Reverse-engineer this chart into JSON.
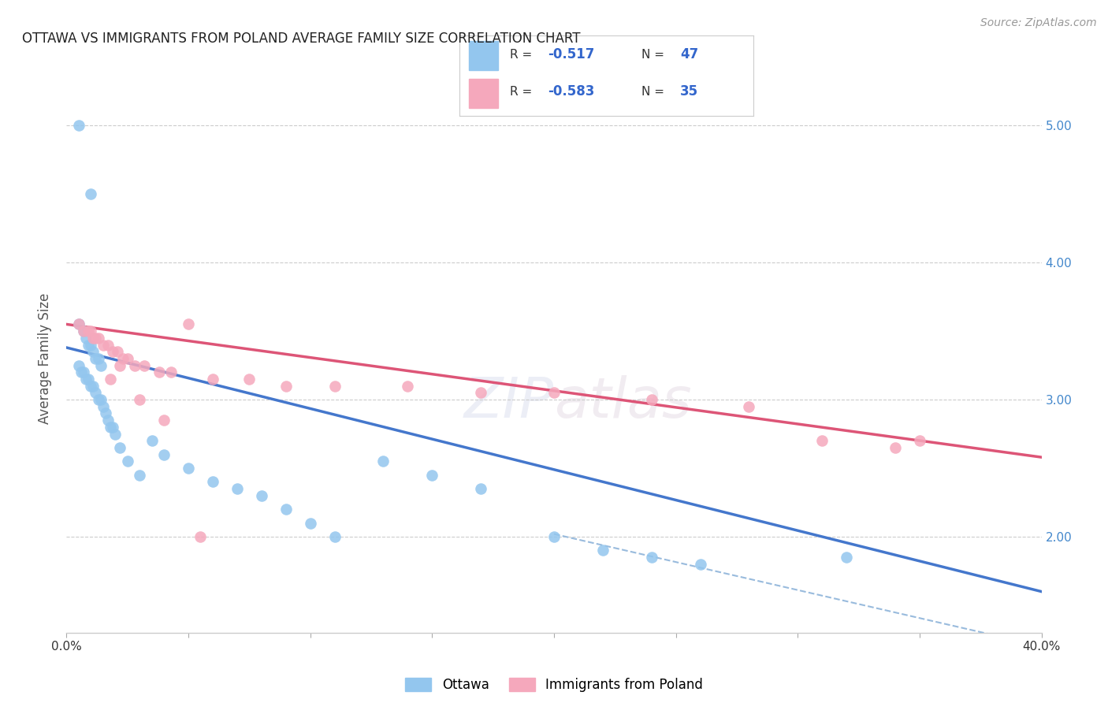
{
  "title": "OTTAWA VS IMMIGRANTS FROM POLAND AVERAGE FAMILY SIZE CORRELATION CHART",
  "source": "Source: ZipAtlas.com",
  "ylabel": "Average Family Size",
  "xlim": [
    0.0,
    0.4
  ],
  "ylim": [
    1.3,
    5.3
  ],
  "right_yticks": [
    5.0,
    4.0,
    3.0,
    2.0
  ],
  "grid_yticks": [
    2.0,
    3.0,
    4.0,
    5.0
  ],
  "background_color": "#ffffff",
  "grid_color": "#cccccc",
  "watermark": "ZIPatlas",
  "ottawa_color": "#93C6EE",
  "poland_color": "#F5A8BC",
  "ottawa_line_color": "#4477CC",
  "poland_line_color": "#DD5577",
  "dashed_line_color": "#99BBDD",
  "r_color": "#3366CC",
  "n_color": "#3366CC",
  "ottawa_scatter_x": [
    0.005,
    0.01,
    0.005,
    0.007,
    0.008,
    0.009,
    0.01,
    0.011,
    0.012,
    0.013,
    0.014,
    0.005,
    0.006,
    0.007,
    0.008,
    0.009,
    0.01,
    0.011,
    0.012,
    0.013,
    0.014,
    0.015,
    0.016,
    0.017,
    0.018,
    0.019,
    0.02,
    0.022,
    0.025,
    0.03,
    0.035,
    0.04,
    0.05,
    0.06,
    0.07,
    0.08,
    0.09,
    0.1,
    0.11,
    0.13,
    0.15,
    0.17,
    0.2,
    0.22,
    0.24,
    0.26,
    0.32
  ],
  "ottawa_scatter_y": [
    5.0,
    4.5,
    3.55,
    3.5,
    3.45,
    3.4,
    3.4,
    3.35,
    3.3,
    3.3,
    3.25,
    3.25,
    3.2,
    3.2,
    3.15,
    3.15,
    3.1,
    3.1,
    3.05,
    3.0,
    3.0,
    2.95,
    2.9,
    2.85,
    2.8,
    2.8,
    2.75,
    2.65,
    2.55,
    2.45,
    2.7,
    2.6,
    2.5,
    2.4,
    2.35,
    2.3,
    2.2,
    2.1,
    2.0,
    2.55,
    2.45,
    2.35,
    2.0,
    1.9,
    1.85,
    1.8,
    1.85
  ],
  "poland_scatter_x": [
    0.005,
    0.007,
    0.009,
    0.01,
    0.011,
    0.013,
    0.015,
    0.017,
    0.019,
    0.021,
    0.023,
    0.025,
    0.028,
    0.032,
    0.038,
    0.043,
    0.05,
    0.06,
    0.075,
    0.09,
    0.11,
    0.14,
    0.17,
    0.2,
    0.24,
    0.28,
    0.31,
    0.34,
    0.012,
    0.018,
    0.022,
    0.03,
    0.04,
    0.055,
    0.35
  ],
  "poland_scatter_y": [
    3.55,
    3.5,
    3.5,
    3.5,
    3.45,
    3.45,
    3.4,
    3.4,
    3.35,
    3.35,
    3.3,
    3.3,
    3.25,
    3.25,
    3.2,
    3.2,
    3.55,
    3.15,
    3.15,
    3.1,
    3.1,
    3.1,
    3.05,
    3.05,
    3.0,
    2.95,
    2.7,
    2.65,
    3.45,
    3.15,
    3.25,
    3.0,
    2.85,
    2.0,
    2.7
  ],
  "ottawa_line_x": [
    0.0,
    0.4
  ],
  "ottawa_line_y": [
    3.38,
    1.6
  ],
  "poland_line_x": [
    0.0,
    0.4
  ],
  "poland_line_y": [
    3.55,
    2.58
  ],
  "dashed_line_x": [
    0.2,
    0.425
  ],
  "dashed_line_y": [
    2.02,
    1.1
  ]
}
